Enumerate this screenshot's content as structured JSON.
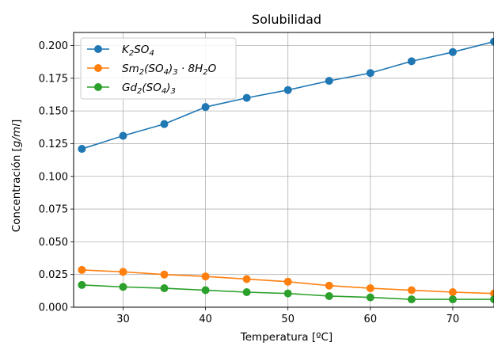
{
  "chart_data": {
    "type": "line",
    "title": "Solubilidad",
    "xlabel": "Temperatura [ºC]",
    "ylabel_parts": {
      "prefix": "Concentración [",
      "unit": "g/ml",
      "suffix": "]"
    },
    "xlim": [
      24,
      75
    ],
    "ylim": [
      0,
      0.21
    ],
    "xticks": [
      30,
      40,
      50,
      60,
      70
    ],
    "yticks": [
      0.0,
      0.025,
      0.05,
      0.075,
      0.1,
      0.125,
      0.15,
      0.175,
      0.2
    ],
    "ytick_labels": [
      "0.000",
      "0.025",
      "0.050",
      "0.075",
      "0.100",
      "0.125",
      "0.150",
      "0.175",
      "0.200"
    ],
    "grid": true,
    "legend_position": "top-left",
    "x": [
      25,
      30,
      35,
      40,
      45,
      50,
      55,
      60,
      65,
      70,
      75
    ],
    "series": [
      {
        "name": "K2SO4",
        "color": "#1f77b4",
        "legend_parts": [
          [
            "K",
            ""
          ],
          [
            "2",
            "sub"
          ],
          [
            "SO",
            ""
          ],
          [
            "4",
            "sub"
          ]
        ],
        "values": [
          0.121,
          0.131,
          0.14,
          0.153,
          0.16,
          0.166,
          0.173,
          0.179,
          0.188,
          0.195,
          0.203
        ]
      },
      {
        "name": "Sm2(SO4)3 · 8H2O",
        "color": "#ff7f0e",
        "legend_parts": [
          [
            "Sm",
            ""
          ],
          [
            "2",
            "sub"
          ],
          [
            "(SO",
            ""
          ],
          [
            "4",
            "sub"
          ],
          [
            ")",
            ""
          ],
          [
            "3",
            "sub"
          ],
          [
            " · 8H",
            ""
          ],
          [
            "2",
            "sub"
          ],
          [
            "O",
            ""
          ]
        ],
        "values": [
          0.0285,
          0.027,
          0.025,
          0.0235,
          0.0215,
          0.0195,
          0.0165,
          0.0145,
          0.013,
          0.0115,
          0.0105
        ]
      },
      {
        "name": "Gd2(SO4)3",
        "color": "#2ca02c",
        "legend_parts": [
          [
            "Gd",
            ""
          ],
          [
            "2",
            "sub"
          ],
          [
            "(SO",
            ""
          ],
          [
            "4",
            "sub"
          ],
          [
            ")",
            ""
          ],
          [
            "3",
            "sub"
          ]
        ],
        "values": [
          0.017,
          0.0155,
          0.0145,
          0.013,
          0.0115,
          0.0105,
          0.0085,
          0.0075,
          0.006,
          0.006,
          0.006
        ]
      }
    ]
  }
}
